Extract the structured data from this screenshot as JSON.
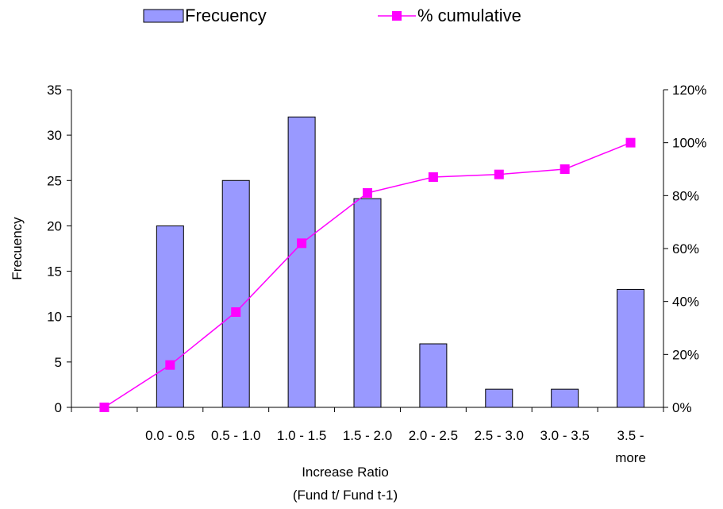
{
  "chart_data": {
    "type": "bar",
    "categories": [
      "",
      "0.0 - 0.5",
      "0.5 - 1.0",
      "1.0 - 1.5",
      "1.5 - 2.0",
      "2.0 - 2.5",
      "2.5 - 3.0",
      "3.0 - 3.5",
      "3.5 - more"
    ],
    "series": [
      {
        "name": "Frecuency",
        "type": "bar",
        "axis": "left",
        "values": [
          null,
          20,
          25,
          32,
          23,
          7,
          2,
          2,
          13
        ],
        "color": "#9999ff"
      },
      {
        "name": "% cumulative",
        "type": "line",
        "axis": "right",
        "values": [
          0,
          16,
          36,
          62,
          81,
          87,
          88,
          90,
          100
        ],
        "color": "#ff00ff"
      }
    ],
    "xlabel": [
      "Increase Ratio",
      "(Fund t/ Fund t-1)"
    ],
    "ylabel": "Frecuency",
    "ylim": [
      0,
      35
    ],
    "yticks": [
      0,
      5,
      10,
      15,
      20,
      25,
      30,
      35
    ],
    "y2lim": [
      0,
      120
    ],
    "y2ticks": [
      "0%",
      "20%",
      "40%",
      "60%",
      "80%",
      "100%",
      "120%"
    ],
    "grid": false,
    "legend": "top"
  }
}
